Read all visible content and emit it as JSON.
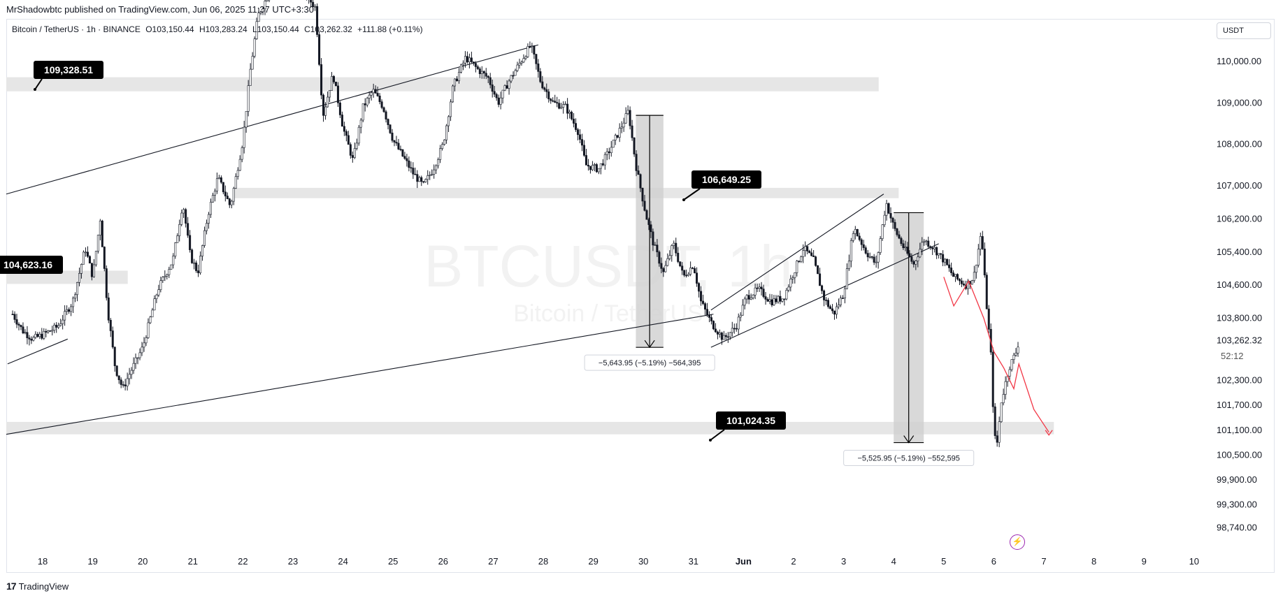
{
  "header": {
    "publisher_line": "MrShadowbtc published on TradingView.com, Jun 06, 2025 11:37 UTC+3:30"
  },
  "legend": {
    "symbol": "Bitcoin / TetherUS · 1h · BINANCE",
    "open": "O103,150.44",
    "high": "H103,283.24",
    "low": "L103,150.44",
    "close": "C103,262.32",
    "change": "+111.88 (+0.11%)"
  },
  "currency_button": "USDT",
  "countdown": "52:12",
  "watermark": {
    "main": "BTCUSDT, 1h",
    "sub": "Bitcoin / TetherUS"
  },
  "footer": {
    "brand": "TradingView",
    "logo": "17"
  },
  "colors": {
    "candle": "#131722",
    "zone": "#e6e6e6",
    "measure": "#cfcfcf",
    "projection": "#f23645",
    "label_bg": "#000000",
    "lightning": "#9c27b0"
  },
  "chart_data": {
    "type": "candlestick",
    "symbol": "BTCUSDT",
    "interval": "1h",
    "x_tick_labels": [
      "18",
      "19",
      "20",
      "21",
      "22",
      "23",
      "24",
      "25",
      "26",
      "27",
      "28",
      "29",
      "30",
      "31",
      "Jun",
      "2",
      "3",
      "4",
      "5",
      "6",
      "7",
      "8",
      "9",
      "10"
    ],
    "x_days": [
      18,
      19,
      20,
      21,
      22,
      23,
      24,
      25,
      26,
      27,
      28,
      29,
      30,
      31,
      32,
      33,
      34,
      35,
      36,
      37,
      38,
      39,
      40,
      41
    ],
    "y_tick_labels": [
      "110,000.00",
      "109,000.00",
      "108,000.00",
      "107,000.00",
      "106,200.00",
      "105,400.00",
      "104,600.00",
      "103,800.00",
      "103,262.32",
      "102,300.00",
      "101,700.00",
      "101,100.00",
      "100,500.00",
      "99,900.00",
      "99,300.00",
      "98,740.00"
    ],
    "y_ticks": [
      110000,
      109000,
      108000,
      107000,
      106200,
      105400,
      104600,
      103800,
      102300,
      101700,
      101100,
      100500,
      99900,
      99300,
      98740
    ],
    "last_price": 103262.32,
    "price_path": [
      [
        17.4,
        103900
      ],
      [
        17.6,
        103500
      ],
      [
        17.8,
        103300
      ],
      [
        18.0,
        103400
      ],
      [
        18.3,
        103600
      ],
      [
        18.6,
        104200
      ],
      [
        18.85,
        105500
      ],
      [
        19.0,
        104800
      ],
      [
        19.15,
        106200
      ],
      [
        19.3,
        104000
      ],
      [
        19.45,
        102600
      ],
      [
        19.6,
        102100
      ],
      [
        19.75,
        102500
      ],
      [
        20.0,
        103100
      ],
      [
        20.3,
        104500
      ],
      [
        20.6,
        105200
      ],
      [
        20.8,
        106600
      ],
      [
        20.95,
        105300
      ],
      [
        21.1,
        104900
      ],
      [
        21.3,
        106300
      ],
      [
        21.5,
        107200
      ],
      [
        21.75,
        106500
      ],
      [
        22.0,
        108100
      ],
      [
        22.15,
        109800
      ],
      [
        22.3,
        111100
      ],
      [
        22.5,
        111600
      ],
      [
        22.7,
        111900
      ],
      [
        22.9,
        111600
      ],
      [
        23.2,
        111700
      ],
      [
        23.45,
        111300
      ],
      [
        23.6,
        108700
      ],
      [
        23.8,
        109700
      ],
      [
        24.0,
        108400
      ],
      [
        24.2,
        107600
      ],
      [
        24.4,
        108900
      ],
      [
        24.6,
        109300
      ],
      [
        24.8,
        108900
      ],
      [
        25.0,
        108100
      ],
      [
        25.2,
        107700
      ],
      [
        25.4,
        107300
      ],
      [
        25.6,
        107000
      ],
      [
        25.8,
        107400
      ],
      [
        26.0,
        108000
      ],
      [
        26.2,
        109400
      ],
      [
        26.45,
        110100
      ],
      [
        26.7,
        109800
      ],
      [
        26.9,
        109600
      ],
      [
        27.1,
        109000
      ],
      [
        27.3,
        109500
      ],
      [
        27.55,
        110000
      ],
      [
        27.75,
        110400
      ],
      [
        27.95,
        109500
      ],
      [
        28.2,
        109000
      ],
      [
        28.45,
        108900
      ],
      [
        28.7,
        108300
      ],
      [
        28.85,
        107500
      ],
      [
        29.1,
        107400
      ],
      [
        29.3,
        107800
      ],
      [
        29.55,
        108400
      ],
      [
        29.7,
        108800
      ],
      [
        29.85,
        107500
      ],
      [
        30.05,
        106300
      ],
      [
        30.2,
        105600
      ],
      [
        30.4,
        104900
      ],
      [
        30.6,
        105600
      ],
      [
        30.8,
        104800
      ],
      [
        31.0,
        105100
      ],
      [
        31.15,
        104200
      ],
      [
        31.35,
        103700
      ],
      [
        31.6,
        103300
      ],
      [
        31.85,
        103600
      ],
      [
        32.05,
        104300
      ],
      [
        32.3,
        104500
      ],
      [
        32.55,
        104200
      ],
      [
        32.8,
        104300
      ],
      [
        33.0,
        104900
      ],
      [
        33.2,
        105500
      ],
      [
        33.4,
        105200
      ],
      [
        33.6,
        104300
      ],
      [
        33.8,
        103900
      ],
      [
        34.0,
        104400
      ],
      [
        34.2,
        106000
      ],
      [
        34.45,
        105400
      ],
      [
        34.65,
        105100
      ],
      [
        34.85,
        106600
      ],
      [
        35.0,
        106000
      ],
      [
        35.2,
        105500
      ],
      [
        35.4,
        105100
      ],
      [
        35.6,
        105700
      ],
      [
        35.8,
        105500
      ],
      [
        36.0,
        105200
      ],
      [
        36.2,
        104800
      ],
      [
        36.45,
        104600
      ],
      [
        36.6,
        104800
      ],
      [
        36.75,
        105900
      ],
      [
        36.85,
        104200
      ],
      [
        36.95,
        102800
      ],
      [
        37.0,
        101200
      ],
      [
        37.05,
        100600
      ],
      [
        37.15,
        101800
      ],
      [
        37.3,
        102600
      ],
      [
        37.45,
        103000
      ],
      [
        37.5,
        103262.32
      ]
    ],
    "zones": [
      {
        "label": "109,328.51",
        "y_low": 109280,
        "y_high": 109620,
        "x_start": 17.0,
        "x_end": 34.7
      },
      {
        "label": "106,649.25",
        "y_low": 106700,
        "y_high": 106950,
        "x_start": 21.8,
        "x_end": 35.1
      },
      {
        "label": "104,623.16",
        "y_low": 104630,
        "y_high": 104950,
        "x_start": 17.0,
        "x_end": 19.7
      },
      {
        "label": "101,024.35",
        "y_low": 101000,
        "y_high": 101300,
        "x_start": 17.0,
        "x_end": 38.2
      }
    ],
    "measurements": [
      {
        "label": "−5,643.95 (−5.19%) −564,395",
        "x_start": 29.85,
        "x_end": 30.4,
        "y_from": 108700,
        "y_to": 103100
      },
      {
        "label": "−5,525.95 (−5.19%) −552,595",
        "x_start": 35.0,
        "x_end": 35.6,
        "y_from": 106350,
        "y_to": 100800
      }
    ],
    "trendlines": [
      {
        "name": "upper channel",
        "from": [
          17.0,
          106800
        ],
        "to": [
          27.9,
          110400
        ]
      },
      {
        "name": "lower support",
        "from": [
          17.0,
          101000
        ],
        "to": [
          31.4,
          103900
        ]
      },
      {
        "name": "small channel",
        "from": [
          17.3,
          102700
        ],
        "to": [
          18.5,
          103300
        ]
      },
      {
        "name": "rising channel top",
        "from": [
          31.35,
          104000
        ],
        "to": [
          34.8,
          106800
        ]
      },
      {
        "name": "rising channel bottom",
        "from": [
          31.35,
          103100
        ],
        "to": [
          35.9,
          105600
        ]
      }
    ],
    "projection_path": [
      [
        36.0,
        104800
      ],
      [
        36.2,
        104100
      ],
      [
        36.5,
        104700
      ],
      [
        36.8,
        103800
      ],
      [
        37.0,
        103000
      ],
      [
        37.2,
        102600
      ],
      [
        37.4,
        102100
      ],
      [
        37.5,
        102700
      ],
      [
        37.8,
        101600
      ],
      [
        38.1,
        101050
      ]
    ],
    "ylim": [
      98500,
      111900
    ],
    "xlim": [
      17.0,
      41.0
    ]
  }
}
